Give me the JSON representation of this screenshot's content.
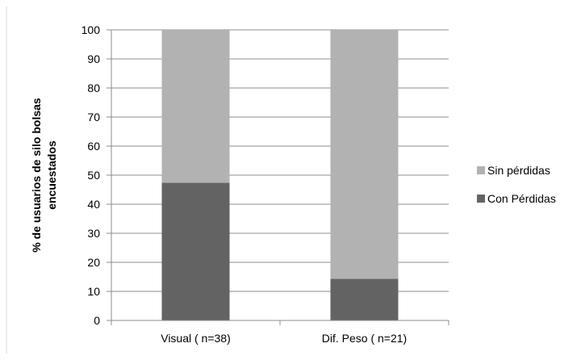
{
  "chart_data": {
    "type": "bar",
    "stacked": true,
    "percent_stacked": true,
    "categories": [
      "Visual ( n=38)",
      "Dif. Peso ( n=21)"
    ],
    "series": [
      {
        "name": "Con Pérdidas",
        "values": [
          47.4,
          14.3
        ],
        "color": "#636363"
      },
      {
        "name": "Sin pérdidas",
        "values": [
          52.6,
          85.7
        ],
        "color": "#b2b2b2"
      }
    ],
    "title": "",
    "xlabel": "",
    "ylabel": "% de usuarios de silo bolsas encuestados",
    "ylabel_lines": [
      "% de usuarios de silo bolsas",
      "encuestados"
    ],
    "ylim": [
      0,
      100
    ],
    "yticks": [
      0,
      10,
      20,
      30,
      40,
      50,
      60,
      70,
      80,
      90,
      100
    ],
    "grid": true,
    "legend": {
      "position": "right",
      "order": [
        "Sin pérdidas",
        "Con Pérdidas"
      ]
    }
  }
}
